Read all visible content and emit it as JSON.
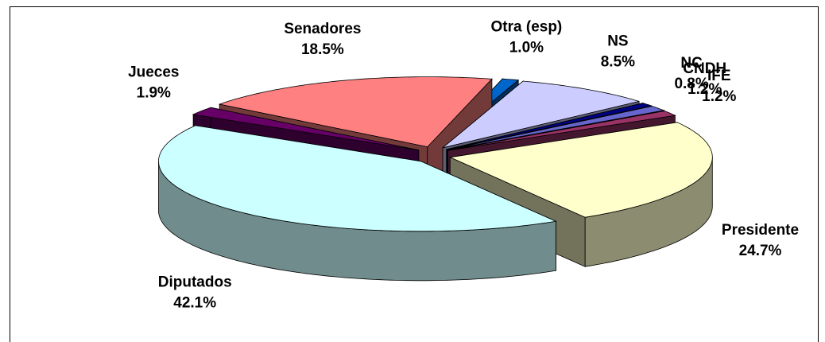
{
  "chart_data": {
    "type": "pie",
    "categories": [
      "Presidente",
      "Diputados",
      "Jueces",
      "Senadores",
      "Otra (esp)",
      "NS",
      "NC",
      "CNDH",
      "IFE"
    ],
    "values": [
      24.7,
      42.1,
      1.9,
      18.5,
      1.0,
      8.5,
      0.8,
      1.2,
      1.2
    ],
    "value_labels": [
      "24.7%",
      "42.1%",
      "1.9%",
      "18.5%",
      "1.0%",
      "8.5%",
      "0.8%",
      "1.2%",
      "1.2%"
    ],
    "colors": [
      "#ffffcc",
      "#ccffff",
      "#660066",
      "#ff8080",
      "#0066cc",
      "#ccccff",
      "#000080",
      "#6666cc",
      "#993366"
    ]
  }
}
